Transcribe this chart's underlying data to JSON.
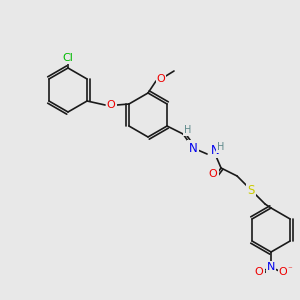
{
  "bg_color": "#e8e8e8",
  "bond_color": "#1a1a1a",
  "colors": {
    "C": "#1a1a1a",
    "H": "#5f8a8b",
    "N": "#0000ee",
    "O": "#ee0000",
    "S": "#cccc00",
    "Cl": "#00bb00"
  },
  "font_size": 7.5,
  "lw": 1.2
}
